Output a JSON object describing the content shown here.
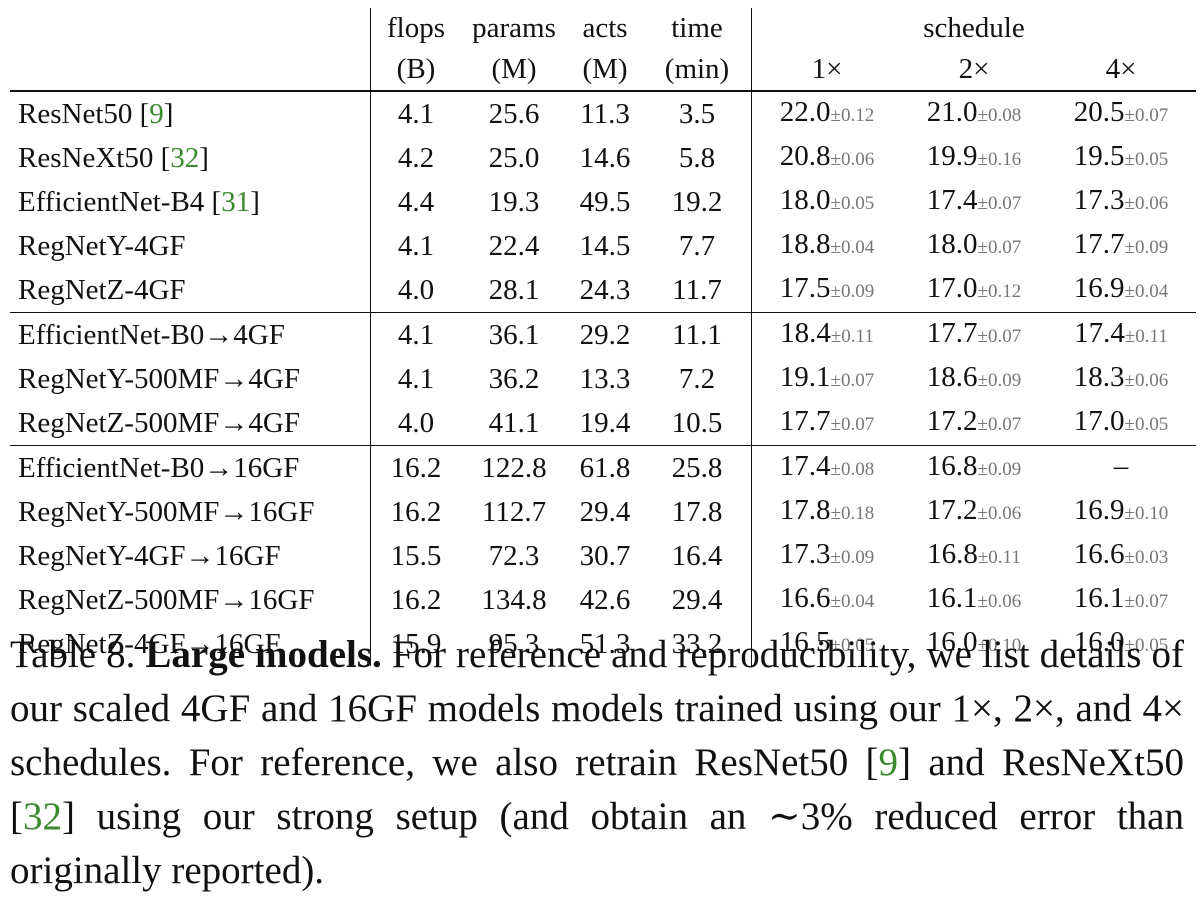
{
  "table": {
    "headers": {
      "flops": [
        "flops",
        "(B)"
      ],
      "params": [
        "params",
        "(M)"
      ],
      "acts": [
        "acts",
        "(M)"
      ],
      "time": [
        "time",
        "(min)"
      ],
      "schedule": "schedule",
      "schedule_cols": [
        "1×",
        "2×",
        "4×"
      ]
    },
    "groups": [
      [
        {
          "model": "ResNet50 ",
          "cite": "9",
          "flops": "4.1",
          "params": "25.6",
          "acts": "11.3",
          "time": "3.5",
          "s1": "22.0",
          "s1sd": "±0.12",
          "s2": "21.0",
          "s2sd": "±0.08",
          "s4": "20.5",
          "s4sd": "±0.07"
        },
        {
          "model": "ResNeXt50 ",
          "cite": "32",
          "flops": "4.2",
          "params": "25.0",
          "acts": "14.6",
          "time": "5.8",
          "s1": "20.8",
          "s1sd": "±0.06",
          "s2": "19.9",
          "s2sd": "±0.16",
          "s4": "19.5",
          "s4sd": "±0.05"
        },
        {
          "model": "EfficientNet-B4 ",
          "cite": "31",
          "flops": "4.4",
          "params": "19.3",
          "acts": "49.5",
          "time": "19.2",
          "s1": "18.0",
          "s1sd": "±0.05",
          "s2": "17.4",
          "s2sd": "±0.07",
          "s4": "17.3",
          "s4sd": "±0.06"
        },
        {
          "model": "RegNetY-4GF",
          "cite": "",
          "flops": "4.1",
          "params": "22.4",
          "acts": "14.5",
          "time": "7.7",
          "s1": "18.8",
          "s1sd": "±0.04",
          "s2": "18.0",
          "s2sd": "±0.07",
          "s4": "17.7",
          "s4sd": "±0.09"
        },
        {
          "model": "RegNetZ-4GF",
          "cite": "",
          "flops": "4.0",
          "params": "28.1",
          "acts": "24.3",
          "time": "11.7",
          "s1": "17.5",
          "s1sd": "±0.09",
          "s2": "17.0",
          "s2sd": "±0.12",
          "s4": "16.9",
          "s4sd": "±0.04"
        }
      ],
      [
        {
          "model": "EfficientNet-B0→4GF",
          "cite": "",
          "flops": "4.1",
          "params": "36.1",
          "acts": "29.2",
          "time": "11.1",
          "s1": "18.4",
          "s1sd": "±0.11",
          "s2": "17.7",
          "s2sd": "±0.07",
          "s4": "17.4",
          "s4sd": "±0.11"
        },
        {
          "model": "RegNetY-500MF→4GF",
          "cite": "",
          "flops": "4.1",
          "params": "36.2",
          "acts": "13.3",
          "time": "7.2",
          "s1": "19.1",
          "s1sd": "±0.07",
          "s2": "18.6",
          "s2sd": "±0.09",
          "s4": "18.3",
          "s4sd": "±0.06"
        },
        {
          "model": "RegNetZ-500MF→4GF",
          "cite": "",
          "flops": "4.0",
          "params": "41.1",
          "acts": "19.4",
          "time": "10.5",
          "s1": "17.7",
          "s1sd": "±0.07",
          "s2": "17.2",
          "s2sd": "±0.07",
          "s4": "17.0",
          "s4sd": "±0.05"
        }
      ],
      [
        {
          "model": "EfficientNet-B0→16GF",
          "cite": "",
          "flops": "16.2",
          "params": "122.8",
          "acts": "61.8",
          "time": "25.8",
          "s1": "17.4",
          "s1sd": "±0.08",
          "s2": "16.8",
          "s2sd": "±0.09",
          "s4": "–",
          "s4sd": ""
        },
        {
          "model": "RegNetY-500MF→16GF",
          "cite": "",
          "flops": "16.2",
          "params": "112.7",
          "acts": "29.4",
          "time": "17.8",
          "s1": "17.8",
          "s1sd": "±0.18",
          "s2": "17.2",
          "s2sd": "±0.06",
          "s4": "16.9",
          "s4sd": "±0.10"
        },
        {
          "model": "RegNetY-4GF→16GF",
          "cite": "",
          "flops": "15.5",
          "params": "72.3",
          "acts": "30.7",
          "time": "16.4",
          "s1": "17.3",
          "s1sd": "±0.09",
          "s2": "16.8",
          "s2sd": "±0.11",
          "s4": "16.6",
          "s4sd": "±0.03"
        },
        {
          "model": "RegNetZ-500MF→16GF",
          "cite": "",
          "flops": "16.2",
          "params": "134.8",
          "acts": "42.6",
          "time": "29.4",
          "s1": "16.6",
          "s1sd": "±0.04",
          "s2": "16.1",
          "s2sd": "±0.06",
          "s4": "16.1",
          "s4sd": "±0.07"
        },
        {
          "model": "RegNetZ-4GF→16GF",
          "cite": "",
          "flops": "15.9",
          "params": "95.3",
          "acts": "51.3",
          "time": "33.2",
          "s1": "16.5",
          "s1sd": "±0.05",
          "s2": "16.0",
          "s2sd": "±0.10",
          "s4": "16.0",
          "s4sd": "±0.05"
        }
      ]
    ]
  },
  "caption": {
    "label": "Table 8. ",
    "title": "Large models.",
    "text_1": " For reference and reproducibility, we list details of our scaled 4GF and 16GF models models trained using our 1×, 2×, and 4× schedules.  For reference, we also retrain ResNet50 [",
    "cite_1": "9",
    "text_2": "] and ResNeXt50 [",
    "cite_2": "32",
    "text_3": "] using our strong setup (and obtain an ∼3% reduced error than originally reported)."
  },
  "colors": {
    "citation": "#3a8a2e",
    "std_dev": "#777777",
    "text": "#111111"
  }
}
